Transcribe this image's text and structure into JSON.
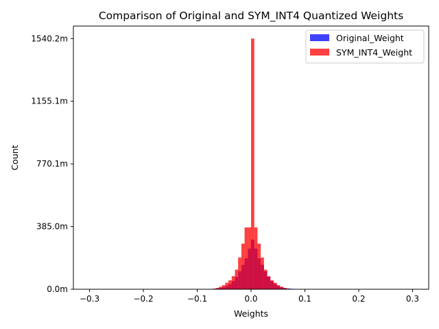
{
  "chart_data": {
    "type": "bar",
    "title": "Comparison of Original and SYM_INT4 Quantized Weights",
    "xlabel": "Weights",
    "ylabel": "Count",
    "xlim": [
      -0.33,
      0.33
    ],
    "ylim": [
      0,
      1617.2
    ],
    "xticks": [
      -0.3,
      -0.2,
      -0.1,
      0.0,
      0.1,
      0.2,
      0.3
    ],
    "xtick_labels": [
      "−0.3",
      "−0.2",
      "−0.1",
      "0.0",
      "0.1",
      "0.2",
      "0.3"
    ],
    "yticks": [
      0,
      385.0,
      770.1,
      1155.1,
      1540.2
    ],
    "ytick_labels": [
      "0.0m",
      "385.0m",
      "770.1m",
      "1155.1m",
      "1540.2m"
    ],
    "legend_position": "top-right",
    "grid": false,
    "series": [
      {
        "name": "Original_Weight",
        "color": "#0000ff",
        "bin_width": 0.006,
        "bins": [
          [
            -0.084,
            1
          ],
          [
            -0.078,
            2
          ],
          [
            -0.072,
            3
          ],
          [
            -0.066,
            5
          ],
          [
            -0.06,
            8
          ],
          [
            -0.054,
            13
          ],
          [
            -0.048,
            20
          ],
          [
            -0.042,
            32
          ],
          [
            -0.036,
            50
          ],
          [
            -0.03,
            75
          ],
          [
            -0.024,
            110
          ],
          [
            -0.018,
            150
          ],
          [
            -0.012,
            190
          ],
          [
            -0.006,
            250
          ],
          [
            0.0,
            305
          ],
          [
            0.006,
            250
          ],
          [
            0.012,
            190
          ],
          [
            0.018,
            150
          ],
          [
            0.024,
            110
          ],
          [
            0.03,
            75
          ],
          [
            0.036,
            50
          ],
          [
            0.042,
            32
          ],
          [
            0.048,
            20
          ],
          [
            0.054,
            13
          ],
          [
            0.06,
            8
          ],
          [
            0.066,
            5
          ],
          [
            0.072,
            3
          ],
          [
            0.078,
            2
          ]
        ]
      },
      {
        "name": "SYM_INT4_Weight",
        "color": "#ff0000",
        "bin_width": 0.006,
        "bins": [
          [
            -0.072,
            3
          ],
          [
            -0.066,
            8
          ],
          [
            -0.06,
            15
          ],
          [
            -0.054,
            25
          ],
          [
            -0.048,
            40
          ],
          [
            -0.042,
            55
          ],
          [
            -0.036,
            80
          ],
          [
            -0.03,
            120
          ],
          [
            -0.024,
            195
          ],
          [
            -0.018,
            280
          ],
          [
            -0.012,
            380
          ],
          [
            -0.006,
            380
          ],
          [
            0.0,
            1540.2
          ],
          [
            0.006,
            380
          ],
          [
            0.012,
            280
          ],
          [
            0.018,
            195
          ],
          [
            0.024,
            120
          ],
          [
            0.03,
            80
          ],
          [
            0.036,
            55
          ],
          [
            0.042,
            40
          ],
          [
            0.048,
            25
          ],
          [
            0.054,
            15
          ],
          [
            0.06,
            8
          ],
          [
            0.066,
            3
          ]
        ]
      }
    ]
  }
}
